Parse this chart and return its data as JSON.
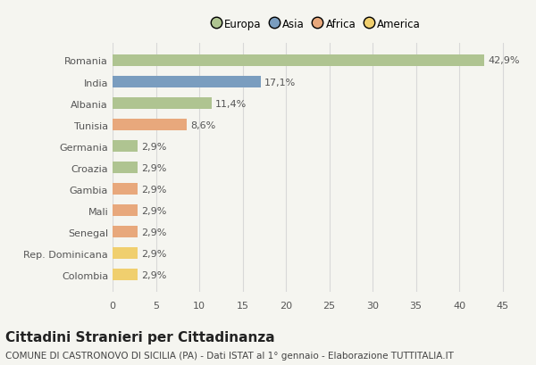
{
  "countries": [
    "Romania",
    "India",
    "Albania",
    "Tunisia",
    "Germania",
    "Croazia",
    "Gambia",
    "Mali",
    "Senegal",
    "Rep. Dominicana",
    "Colombia"
  ],
  "values": [
    42.9,
    17.1,
    11.4,
    8.6,
    2.9,
    2.9,
    2.9,
    2.9,
    2.9,
    2.9,
    2.9
  ],
  "labels": [
    "42,9%",
    "17,1%",
    "11,4%",
    "8,6%",
    "2,9%",
    "2,9%",
    "2,9%",
    "2,9%",
    "2,9%",
    "2,9%",
    "2,9%"
  ],
  "continents": [
    "Europa",
    "Asia",
    "Europa",
    "Africa",
    "Europa",
    "Europa",
    "Africa",
    "Africa",
    "Africa",
    "America",
    "America"
  ],
  "colors": {
    "Europa": "#afc491",
    "Asia": "#7a9dbf",
    "Africa": "#e8a87c",
    "America": "#f0cf6e"
  },
  "legend_labels": [
    "Europa",
    "Asia",
    "Africa",
    "America"
  ],
  "legend_colors": [
    "#afc491",
    "#7a9dbf",
    "#e8a87c",
    "#f0cf6e"
  ],
  "xlim": [
    0,
    47
  ],
  "xticks": [
    0,
    5,
    10,
    15,
    20,
    25,
    30,
    35,
    40,
    45
  ],
  "title": "Cittadini Stranieri per Cittadinanza",
  "subtitle": "COMUNE DI CASTRONOVO DI SICILIA (PA) - Dati ISTAT al 1° gennaio - Elaborazione TUTTITALIA.IT",
  "background_color": "#f5f5f0",
  "grid_color": "#d8d8d8",
  "label_fontsize": 8,
  "tick_fontsize": 8,
  "title_fontsize": 11,
  "subtitle_fontsize": 7.5
}
